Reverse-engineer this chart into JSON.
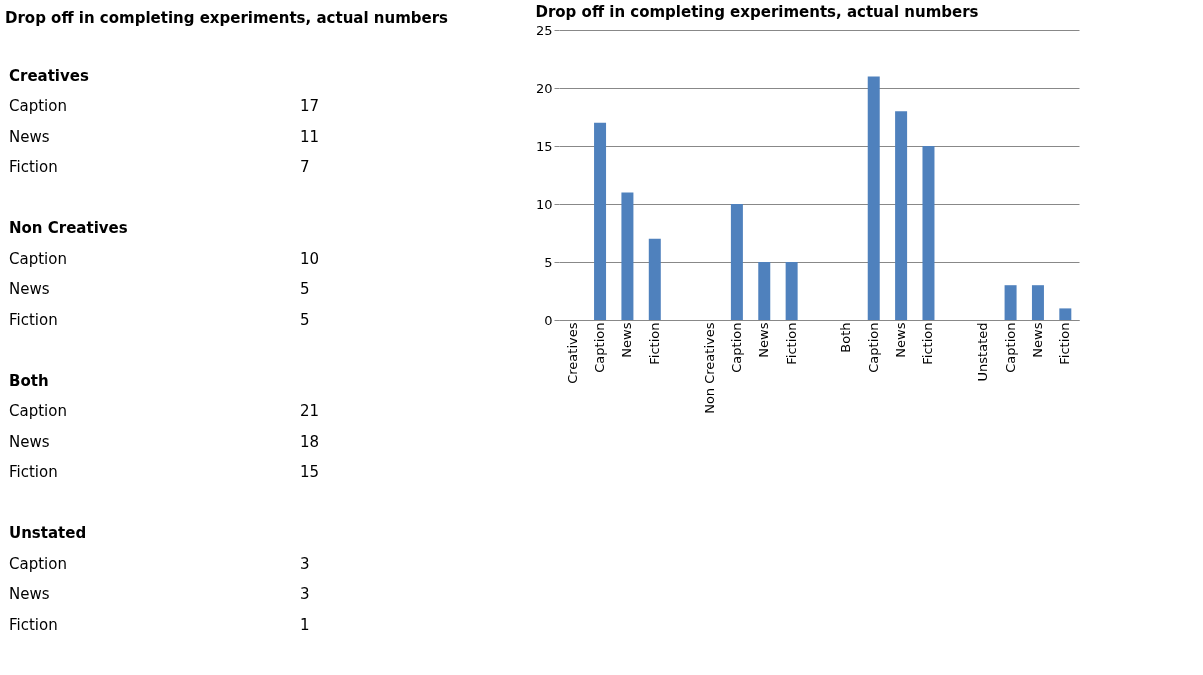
{
  "chart_data": [
    {
      "type": "other",
      "title": "Drop off in completing experiments, actual numbers",
      "categories": [
        null,
        "Creatives",
        "Caption",
        "News",
        "Fiction",
        null,
        "Non Creatives",
        "Caption",
        "News",
        "Fiction",
        null,
        "Both",
        "Caption",
        "News",
        "Fiction",
        null,
        "Unstated",
        "Caption",
        "News",
        "Fiction"
      ],
      "values": [
        null,
        null,
        17,
        11,
        7,
        null,
        null,
        10,
        5,
        5,
        null,
        null,
        21,
        18,
        15,
        null,
        null,
        3,
        3,
        1
      ],
      "data_labels": true
    },
    {
      "type": "bar",
      "title": "Drop off in completing experiments, actual numbers",
      "categories": [
        "Creatives",
        "Caption",
        "News",
        "Fiction",
        null,
        "Non Creatives",
        "Caption",
        "News",
        "Fiction",
        null,
        "Both",
        "Caption",
        "News",
        "Fiction",
        null,
        "Unstated",
        "Caption",
        "News",
        "Fiction"
      ],
      "values": [
        null,
        17,
        11,
        7,
        null,
        null,
        10,
        5,
        5,
        null,
        null,
        21,
        18,
        15,
        null,
        null,
        3,
        3,
        1
      ],
      "color": "#4f81bd",
      "ylim": [
        0,
        25
      ],
      "yticks": [
        0,
        5,
        10,
        15,
        20,
        25
      ],
      "grid": "y"
    }
  ]
}
